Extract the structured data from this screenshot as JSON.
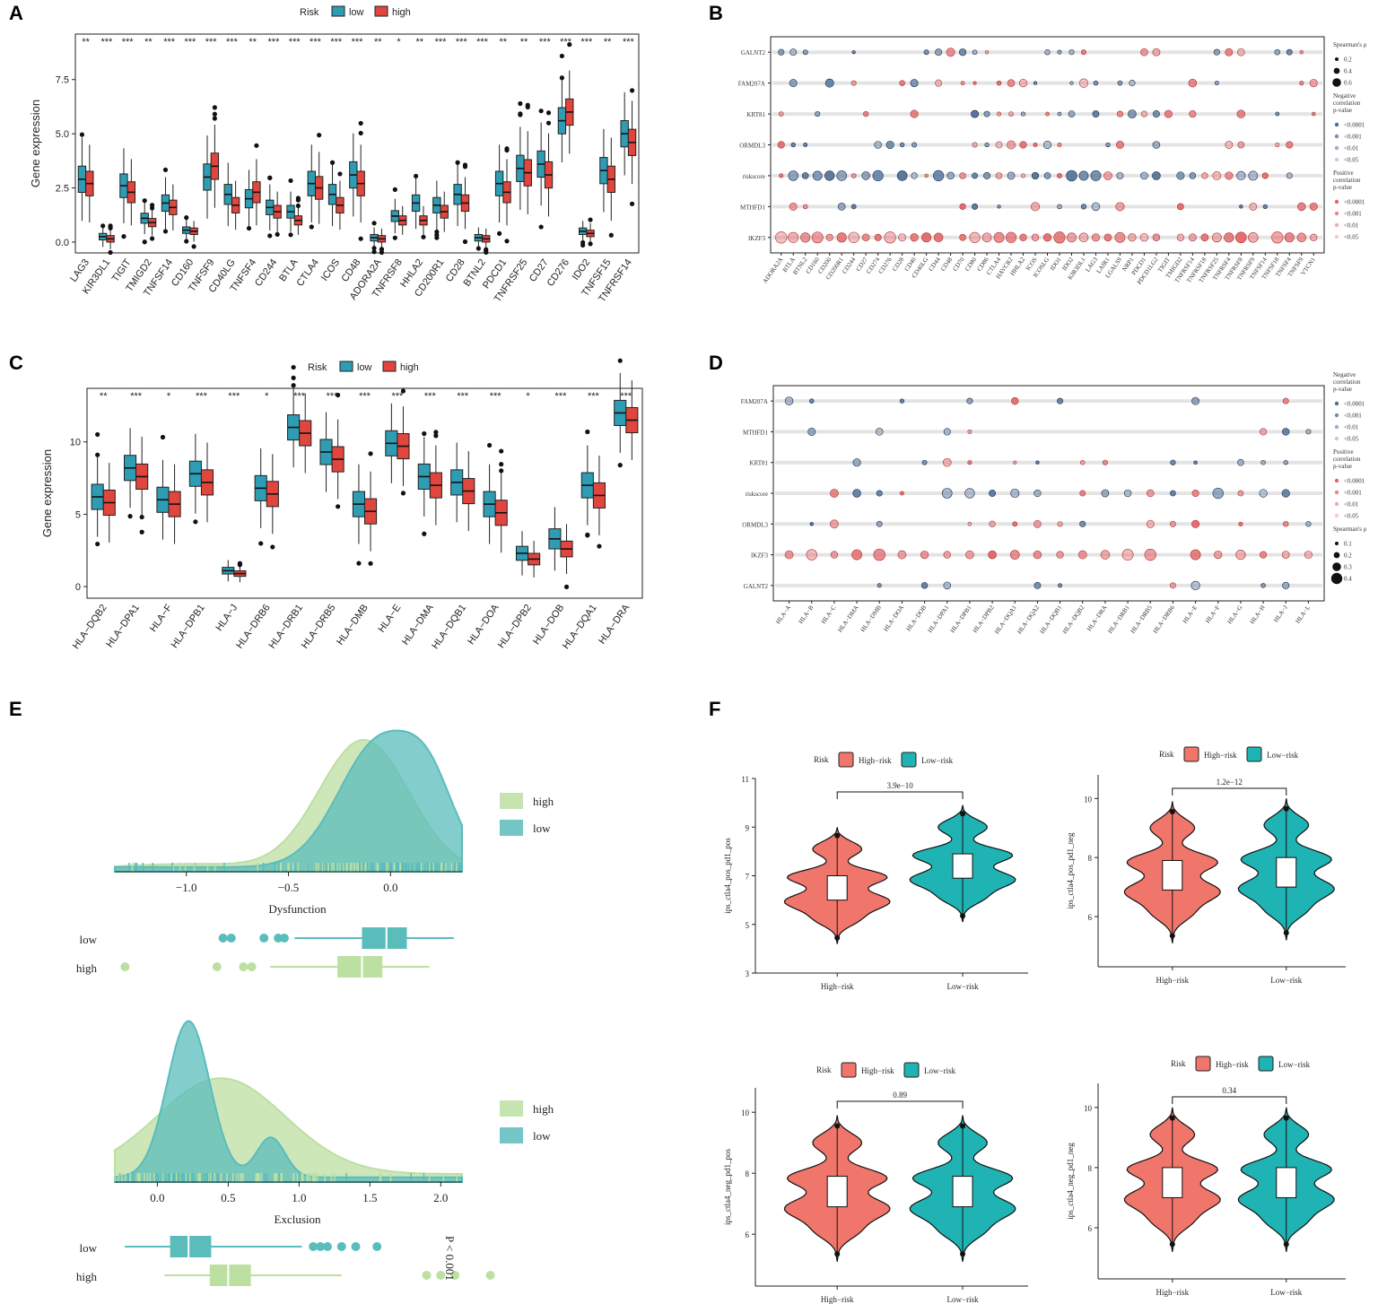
{
  "panels": [
    "A",
    "B",
    "C",
    "D",
    "E",
    "F"
  ],
  "colors": {
    "low": "#2e9cb3",
    "high": "#e0463d",
    "pos": "#e0585a",
    "neg": "#2a4e7a",
    "dens_high": "#bcdfa2",
    "dens_low": "#5bbcbc",
    "violin_high": "#f0756b",
    "violin_low": "#1fb3b3"
  },
  "chart_data": [
    {
      "id": "A",
      "type": "box",
      "legend": {
        "title": "Risk",
        "items": [
          "low",
          "high"
        ]
      },
      "ylabel": "Gene expression",
      "ylim": [
        -0.5,
        9.6
      ],
      "yticks": [
        "0.0",
        "2.5",
        "5.0",
        "7.5"
      ],
      "categories": [
        "LAG3",
        "KIR3DL1",
        "TIGIT",
        "TMIGD2",
        "TNFSF14",
        "CD160",
        "TNFSF9",
        "CD40LG",
        "TNFSF4",
        "CD244",
        "BTLA",
        "CTLA4",
        "ICOS",
        "CD48",
        "ADORA2A",
        "TNFRSF8",
        "HHLA2",
        "CD200R1",
        "CD28",
        "BTNL2",
        "PDCD1",
        "TNFRSF25",
        "CD27",
        "CD276",
        "IDO2",
        "TNFSF15",
        "TNFRSF14"
      ],
      "signif": [
        "**",
        "***",
        "***",
        "**",
        "***",
        "***",
        "***",
        "***",
        "**",
        "***",
        "***",
        "***",
        "***",
        "***",
        "**",
        "*",
        "**",
        "***",
        "***",
        "***",
        "**",
        "**",
        "***",
        "***",
        "***",
        "**",
        "***"
      ],
      "low_median": [
        2.9,
        0.25,
        2.6,
        1.1,
        1.8,
        0.55,
        3.0,
        2.2,
        2.0,
        1.6,
        1.4,
        2.7,
        2.2,
        3.1,
        0.2,
        1.2,
        1.8,
        1.7,
        2.2,
        0.2,
        2.7,
        3.4,
        3.6,
        5.6,
        0.5,
        3.3,
        5.0
      ],
      "high_median": [
        2.7,
        0.15,
        2.3,
        0.9,
        1.6,
        0.5,
        3.5,
        1.7,
        2.3,
        1.4,
        1.0,
        2.5,
        1.7,
        2.7,
        0.15,
        1.0,
        1.0,
        1.4,
        1.8,
        0.15,
        2.3,
        3.2,
        3.1,
        6.0,
        0.4,
        2.9,
        4.6
      ]
    },
    {
      "id": "B",
      "type": "bubble",
      "rows": [
        "GALNT2",
        "FAM207A",
        "KRT81",
        "ORMDL3",
        "riskscore",
        "MTHFD1",
        "IKZF3"
      ],
      "columns": [
        "ADORA2A",
        "BTLA",
        "BTNL2",
        "CD160",
        "CD200",
        "CD200R1",
        "CD244",
        "CD27",
        "CD274",
        "CD276",
        "CD28",
        "CD40",
        "CD40LG",
        "CD44",
        "CD48",
        "CD70",
        "CD80",
        "CD86",
        "CTLA4",
        "HAVCR2",
        "HHLA2",
        "ICOS",
        "ICOSLG",
        "IDO1",
        "IDO2",
        "KIR3DL1",
        "LAG3",
        "LAIR1",
        "LGALS9",
        "NRP1",
        "PDCD1",
        "PDCD1LG2",
        "TIGIT",
        "TMIGD2",
        "TNFRSF14",
        "TNFRSF18",
        "TNFRSF25",
        "TNFRSF4",
        "TNFRSF8",
        "TNFRSF9",
        "TNFSF14",
        "TNFSF18",
        "TNFSF4",
        "TNFSF9",
        "VTCN1"
      ],
      "legend_size": {
        "title": "Spearman's ρ",
        "values": [
          "0.2",
          "0.4",
          "0.6"
        ]
      },
      "legend_neg": {
        "title": "Negative correlation p-value",
        "values": [
          "<0.0001",
          "<0.001",
          "<0.01",
          "<0.05"
        ]
      },
      "legend_pos": {
        "title": "Positive correlation p-value",
        "values": [
          "<0.0001",
          "<0.001",
          "<0.01",
          "<0.05"
        ]
      }
    },
    {
      "id": "C",
      "type": "box",
      "legend": {
        "title": "Risk",
        "items": [
          "low",
          "high"
        ]
      },
      "ylabel": "Gene expression",
      "ylim": [
        -0.8,
        13.7
      ],
      "yticks": [
        "0",
        "5",
        "10"
      ],
      "categories": [
        "HLA−DQB2",
        "HLA−DPA1",
        "HLA−F",
        "HLA−DPB1",
        "HLA−J",
        "HLA−DRB6",
        "HLA−DRB1",
        "HLA−DRB5",
        "HLA−DMB",
        "HLA−E",
        "HLA−DMA",
        "HLA−DQB1",
        "HLA−DOA",
        "HLA−DPB2",
        "HLA−DOB",
        "HLA−DQA1",
        "HLA−DRA"
      ],
      "signif": [
        "**",
        "***",
        "*",
        "***",
        "***",
        "*",
        "***",
        "***",
        "***",
        "***",
        "***",
        "***",
        "***",
        "*",
        "***",
        "***",
        "***"
      ],
      "low_median": [
        6.2,
        8.2,
        6.0,
        7.8,
        1.1,
        6.8,
        11.0,
        9.3,
        5.7,
        9.9,
        7.6,
        7.2,
        5.7,
        2.3,
        3.3,
        7.0,
        12.0
      ],
      "high_median": [
        5.8,
        7.6,
        5.7,
        7.2,
        0.9,
        6.4,
        10.6,
        8.8,
        5.2,
        9.7,
        7.0,
        6.6,
        5.1,
        1.9,
        2.6,
        6.3,
        11.5
      ]
    },
    {
      "id": "D",
      "type": "bubble",
      "rows": [
        "FAM207A",
        "MTHFD1",
        "KRT81",
        "riskscore",
        "ORMDL3",
        "IKZF3",
        "GALNT2"
      ],
      "columns": [
        "HLA−A",
        "HLA−B",
        "HLA−C",
        "HLA−DMA",
        "HLA−DMB",
        "HLA−DOA",
        "HLA−DOB",
        "HLA−DPA1",
        "HLA−DPB1",
        "HLA−DPB2",
        "HLA−DQA1",
        "HLA−DQA2",
        "HLA−DQB1",
        "HLA−DQB2",
        "HLA−DRA",
        "HLA−DRB1",
        "HLA−DRB5",
        "HLA−DRB6",
        "HLA−E",
        "HLA−F",
        "HLA−G",
        "HLA−H",
        "HLA−J",
        "HLA−L"
      ],
      "legend_neg": {
        "title": "Negative correlation p-value",
        "values": [
          "<0.0001",
          "<0.001",
          "<0.01",
          "<0.05"
        ]
      },
      "legend_pos": {
        "title": "Positive correlation p-value",
        "values": [
          "<0.0001",
          "<0.001",
          "<0.01",
          "<0.05"
        ]
      },
      "legend_size": {
        "title": "Spearman's ρ",
        "values": [
          "0.1",
          "0.2",
          "0.3",
          "0.4"
        ]
      }
    },
    {
      "id": "E1",
      "type": "density",
      "xlabel": "Dysfunction",
      "xlim": [
        -1.35,
        0.35
      ],
      "xticks": [
        "−1.0",
        "−0.5",
        "0.0"
      ],
      "series": [
        {
          "name": "high",
          "median": -0.14
        },
        {
          "name": "low",
          "median": -0.02
        }
      ],
      "box_labels": [
        "low",
        "high"
      ]
    },
    {
      "id": "E2",
      "type": "density",
      "xlabel": "Exclusion",
      "xlim": [
        -0.3,
        2.15
      ],
      "xticks": [
        "0.0",
        "0.5",
        "1.0",
        "1.5",
        "2.0"
      ],
      "series": [
        {
          "name": "high",
          "median": 0.5
        },
        {
          "name": "low",
          "median": 0.22
        }
      ],
      "box_labels": [
        "low",
        "high"
      ],
      "annotation": "P < 0.001"
    },
    {
      "id": "F1",
      "type": "violin",
      "ylabel": "ips_ctla4_pos_pd1_pos",
      "legend": {
        "title": "Risk",
        "items": [
          "High−risk",
          "Low−risk"
        ]
      },
      "categories": [
        "High−risk",
        "Low−risk"
      ],
      "pvalue": "3.9e−10",
      "ylim": [
        3,
        11
      ],
      "yticks": [
        "3",
        "5",
        "7",
        "9",
        "11"
      ],
      "medians": [
        6.5,
        7.4
      ]
    },
    {
      "id": "F2",
      "type": "violin",
      "ylabel": "ips_ctla4_pos_pd1_neg",
      "legend": {
        "title": "Risk",
        "items": [
          "High−risk",
          "Low−risk"
        ]
      },
      "categories": [
        "High−risk",
        "Low−risk"
      ],
      "pvalue": "1.2e−12",
      "ylim": [
        4.3,
        10.8
      ],
      "yticks": [
        "6",
        "8",
        "10"
      ],
      "medians": [
        7.4,
        7.5
      ]
    },
    {
      "id": "F3",
      "type": "violin",
      "ylabel": "ips_ctla4_neg_pd1_pos",
      "legend": {
        "title": "Risk",
        "items": [
          "High−risk",
          "Low−risk"
        ]
      },
      "categories": [
        "High−risk",
        "Low−risk"
      ],
      "pvalue": "0.89",
      "ylim": [
        4.3,
        10.8
      ],
      "yticks": [
        "6",
        "8",
        "10"
      ],
      "medians": [
        7.4,
        7.4
      ]
    },
    {
      "id": "F4",
      "type": "violin",
      "ylabel": "ips_ctla4_neg_pd1_neg",
      "legend": {
        "title": "Risk",
        "items": [
          "High−risk",
          "Low−risk"
        ]
      },
      "categories": [
        "High−risk",
        "Low−risk"
      ],
      "pvalue": "0.34",
      "ylim": [
        4.3,
        10.8
      ],
      "yticks": [
        "6",
        "8",
        "10"
      ],
      "medians": [
        7.5,
        7.5
      ]
    }
  ]
}
